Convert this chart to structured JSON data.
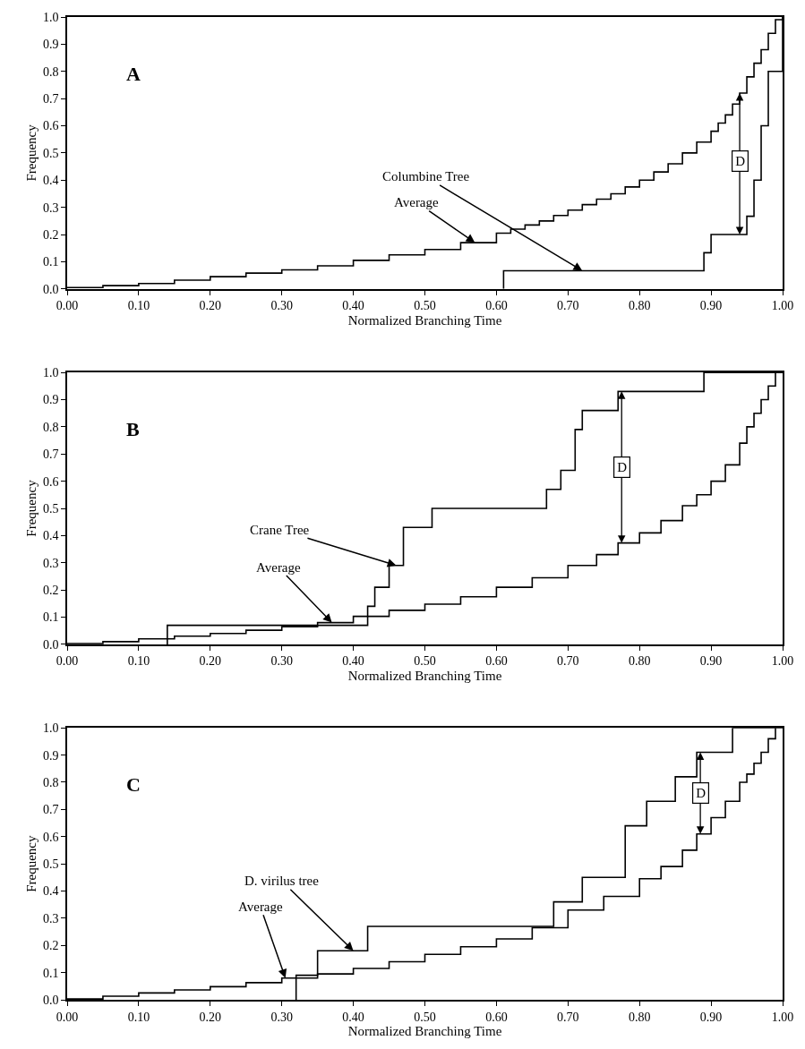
{
  "chart_data": [
    {
      "type": "step",
      "xlabel": "Normalized Branching Time",
      "ylabel": "Frequency",
      "xlim": [
        0,
        1
      ],
      "ylim": [
        0,
        1
      ],
      "xticks": [
        {
          "value": 0,
          "label": "0.00"
        },
        {
          "value": 0.1,
          "label": "0.10"
        },
        {
          "value": 0.2,
          "label": "0.20"
        },
        {
          "value": 0.3,
          "label": "0.30"
        },
        {
          "value": 0.4,
          "label": "0.40"
        },
        {
          "value": 0.5,
          "label": "0.50"
        },
        {
          "value": 0.6,
          "label": "0.60"
        },
        {
          "value": 0.7,
          "label": "0.70"
        },
        {
          "value": 0.8,
          "label": "0.80"
        },
        {
          "value": 0.9,
          "label": "0.90"
        },
        {
          "value": 1,
          "label": "1.00"
        }
      ],
      "yticks": [
        {
          "value": 0,
          "label": "0.0"
        },
        {
          "value": 0.1,
          "label": "0.1"
        },
        {
          "value": 0.2,
          "label": "0.2"
        },
        {
          "value": 0.3,
          "label": "0.3"
        },
        {
          "value": 0.4,
          "label": "0.4"
        },
        {
          "value": 0.5,
          "label": "0.5"
        },
        {
          "value": 0.6,
          "label": "0.6"
        },
        {
          "value": 0.7,
          "label": "0.7"
        },
        {
          "value": 0.8,
          "label": "0.8"
        },
        {
          "value": 0.9,
          "label": "0.9"
        },
        {
          "value": 1,
          "label": "1.0"
        }
      ],
      "series": [
        {
          "color": "#000000",
          "x": [
            0,
            0.05,
            0.1,
            0.15,
            0.2,
            0.25,
            0.3,
            0.35,
            0.4,
            0.45,
            0.5,
            0.55,
            0.6,
            0.62,
            0.64,
            0.66,
            0.68,
            0.7,
            0.72,
            0.74,
            0.76,
            0.78,
            0.8,
            0.82,
            0.84,
            0.86,
            0.88,
            0.9,
            0.91,
            0.92,
            0.93,
            0.94,
            0.95,
            0.96,
            0.97,
            0.98,
            0.99,
            1.0
          ],
          "values": [
            0.005,
            0.012,
            0.02,
            0.032,
            0.045,
            0.058,
            0.07,
            0.085,
            0.105,
            0.125,
            0.145,
            0.17,
            0.205,
            0.22,
            0.235,
            0.25,
            0.27,
            0.29,
            0.31,
            0.33,
            0.35,
            0.375,
            0.4,
            0.43,
            0.46,
            0.5,
            0.54,
            0.58,
            0.61,
            0.64,
            0.68,
            0.72,
            0.78,
            0.83,
            0.88,
            0.94,
            0.99,
            1.0
          ]
        },
        {
          "color": "#000000",
          "x": [
            0.61,
            0.61,
            0.89,
            0.9,
            0.95,
            0.96,
            0.97,
            0.98,
            1.0
          ],
          "values": [
            0,
            0.067,
            0.133,
            0.2,
            0.267,
            0.4,
            0.6,
            0.8,
            1.0
          ]
        }
      ],
      "annotations": [
        "A",
        {
          "text": "Columbine Tree",
          "x": 0.72,
          "y": 0.067
        },
        {
          "text": "Average",
          "x": 0.57,
          "y": 0.17
        },
        {
          "text": "D",
          "x": 0.94,
          "y": 0.47
        }
      ],
      "marker": "none",
      "line_style": "solid"
    },
    {
      "type": "step",
      "xlabel": "Normalized Branching Time",
      "ylabel": "Frequency",
      "xlim": [
        0,
        1
      ],
      "ylim": [
        0,
        1
      ],
      "xticks": [
        {
          "value": 0,
          "label": "0.00"
        },
        {
          "value": 0.1,
          "label": "0.10"
        },
        {
          "value": 0.2,
          "label": "0.20"
        },
        {
          "value": 0.3,
          "label": "0.30"
        },
        {
          "value": 0.4,
          "label": "0.40"
        },
        {
          "value": 0.5,
          "label": "0.50"
        },
        {
          "value": 0.6,
          "label": "0.60"
        },
        {
          "value": 0.7,
          "label": "0.70"
        },
        {
          "value": 0.8,
          "label": "0.80"
        },
        {
          "value": 0.9,
          "label": "0.90"
        },
        {
          "value": 1,
          "label": "1.00"
        }
      ],
      "yticks": [
        {
          "value": 0,
          "label": "0.0"
        },
        {
          "value": 0.1,
          "label": "0.1"
        },
        {
          "value": 0.2,
          "label": "0.2"
        },
        {
          "value": 0.3,
          "label": "0.3"
        },
        {
          "value": 0.4,
          "label": "0.4"
        },
        {
          "value": 0.5,
          "label": "0.5"
        },
        {
          "value": 0.6,
          "label": "0.6"
        },
        {
          "value": 0.7,
          "label": "0.7"
        },
        {
          "value": 0.8,
          "label": "0.8"
        },
        {
          "value": 0.9,
          "label": "0.9"
        },
        {
          "value": 1,
          "label": "1.0"
        }
      ],
      "series": [
        {
          "color": "#000000",
          "x": [
            0,
            0.05,
            0.1,
            0.15,
            0.2,
            0.25,
            0.3,
            0.35,
            0.4,
            0.45,
            0.5,
            0.55,
            0.6,
            0.65,
            0.7,
            0.74,
            0.77,
            0.8,
            0.83,
            0.86,
            0.88,
            0.9,
            0.92,
            0.94,
            0.95,
            0.96,
            0.97,
            0.98,
            0.99
          ],
          "values": [
            0.003,
            0.01,
            0.02,
            0.03,
            0.04,
            0.052,
            0.065,
            0.08,
            0.103,
            0.125,
            0.148,
            0.175,
            0.21,
            0.245,
            0.29,
            0.33,
            0.373,
            0.41,
            0.455,
            0.51,
            0.55,
            0.6,
            0.66,
            0.74,
            0.8,
            0.85,
            0.9,
            0.95,
            1.0
          ]
        },
        {
          "color": "#000000",
          "x": [
            0.14,
            0.14,
            0.42,
            0.43,
            0.45,
            0.47,
            0.51,
            0.67,
            0.69,
            0.71,
            0.72,
            0.77,
            0.89,
            1.0
          ],
          "values": [
            0,
            0.07,
            0.14,
            0.21,
            0.29,
            0.43,
            0.5,
            0.57,
            0.64,
            0.79,
            0.86,
            0.93,
            1.0,
            1.0
          ]
        }
      ],
      "annotations": [
        "B",
        {
          "text": "Crane Tree",
          "x": 0.46,
          "y": 0.29
        },
        {
          "text": "Average",
          "x": 0.37,
          "y": 0.08
        },
        {
          "text": "D",
          "x": 0.775,
          "y": 0.65
        }
      ],
      "marker": "none",
      "line_style": "solid"
    },
    {
      "type": "step",
      "xlabel": "Normalized Branching Time",
      "ylabel": "Frequency",
      "xlim": [
        0,
        1
      ],
      "ylim": [
        0,
        1
      ],
      "xticks": [
        {
          "value": 0,
          "label": "0.00"
        },
        {
          "value": 0.1,
          "label": "0.10"
        },
        {
          "value": 0.2,
          "label": "0.20"
        },
        {
          "value": 0.3,
          "label": "0.30"
        },
        {
          "value": 0.4,
          "label": "0.40"
        },
        {
          "value": 0.5,
          "label": "0.50"
        },
        {
          "value": 0.6,
          "label": "0.60"
        },
        {
          "value": 0.7,
          "label": "0.70"
        },
        {
          "value": 0.8,
          "label": "0.80"
        },
        {
          "value": 0.9,
          "label": "0.90"
        },
        {
          "value": 1,
          "label": "1.00"
        }
      ],
      "yticks": [
        {
          "value": 0,
          "label": "0.0"
        },
        {
          "value": 0.1,
          "label": "0.1"
        },
        {
          "value": 0.2,
          "label": "0.2"
        },
        {
          "value": 0.3,
          "label": "0.3"
        },
        {
          "value": 0.4,
          "label": "0.4"
        },
        {
          "value": 0.5,
          "label": "0.5"
        },
        {
          "value": 0.6,
          "label": "0.6"
        },
        {
          "value": 0.7,
          "label": "0.7"
        },
        {
          "value": 0.8,
          "label": "0.8"
        },
        {
          "value": 0.9,
          "label": "0.9"
        },
        {
          "value": 1,
          "label": "1.0"
        }
      ],
      "series": [
        {
          "color": "#000000",
          "x": [
            0,
            0.05,
            0.1,
            0.15,
            0.2,
            0.25,
            0.3,
            0.35,
            0.4,
            0.45,
            0.5,
            0.55,
            0.6,
            0.65,
            0.7,
            0.75,
            0.8,
            0.83,
            0.86,
            0.88,
            0.9,
            0.92,
            0.94,
            0.95,
            0.96,
            0.97,
            0.98,
            0.99
          ],
          "values": [
            0.003,
            0.013,
            0.025,
            0.036,
            0.048,
            0.063,
            0.08,
            0.095,
            0.115,
            0.14,
            0.167,
            0.195,
            0.224,
            0.265,
            0.33,
            0.38,
            0.445,
            0.49,
            0.55,
            0.61,
            0.67,
            0.73,
            0.8,
            0.83,
            0.87,
            0.91,
            0.96,
            1.0
          ]
        },
        {
          "color": "#000000",
          "x": [
            0.32,
            0.32,
            0.35,
            0.42,
            0.68,
            0.72,
            0.78,
            0.81,
            0.85,
            0.88,
            0.93,
            1.0
          ],
          "values": [
            0,
            0.09,
            0.18,
            0.27,
            0.36,
            0.45,
            0.64,
            0.73,
            0.82,
            0.91,
            1.0,
            1.0
          ]
        }
      ],
      "annotations": [
        "C",
        {
          "text": "D. virilus tree",
          "x": 0.4,
          "y": 0.18
        },
        {
          "text": "Average",
          "x": 0.305,
          "y": 0.08
        },
        {
          "text": "D",
          "x": 0.885,
          "y": 0.76
        }
      ],
      "marker": "none",
      "line_style": "solid"
    }
  ]
}
